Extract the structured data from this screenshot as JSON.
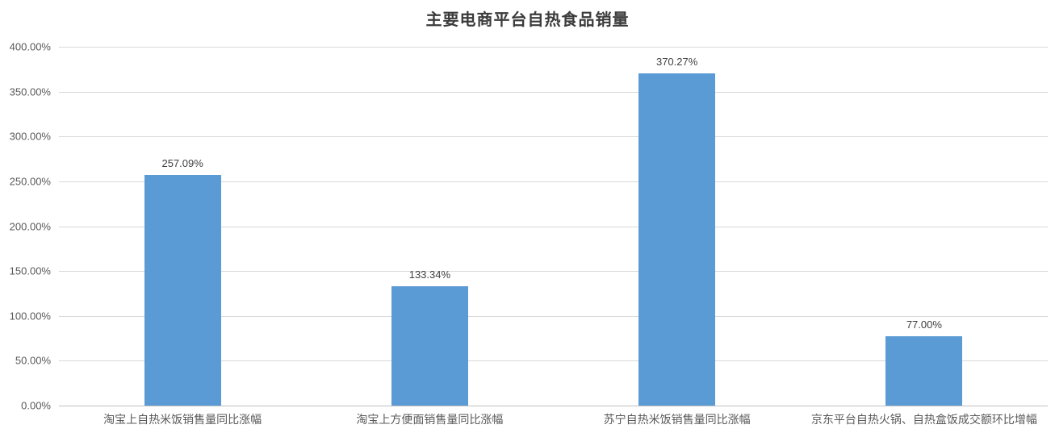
{
  "chart_data": {
    "type": "bar",
    "title": "主要电商平台自热食品销量",
    "categories": [
      "淘宝上自热米饭销售量同比涨幅",
      "淘宝上方便面销售量同比涨幅",
      "苏宁自热米饭销售量同比涨幅",
      "京东平台自热火锅、自热盒饭成交额环比增幅"
    ],
    "values": [
      257.09,
      133.34,
      370.27,
      77.0
    ],
    "data_labels": [
      "257.09%",
      "133.34%",
      "370.27%",
      "77.00%"
    ],
    "xlabel": "",
    "ylabel": "",
    "ylim": [
      0,
      400
    ],
    "ytick_step": 50,
    "ytick_labels": [
      "0.00%",
      "50.00%",
      "100.00%",
      "150.00%",
      "200.00%",
      "250.00%",
      "300.00%",
      "350.00%",
      "400.00%"
    ],
    "grid": true,
    "legend": false,
    "colors": {
      "bar": "#5b9bd5",
      "gridline": "#d9d9d9",
      "axis_line": "#bfbfbf",
      "tick_text": "#595959",
      "data_label_text": "#404040",
      "title_text": "#3b3b3b"
    }
  }
}
